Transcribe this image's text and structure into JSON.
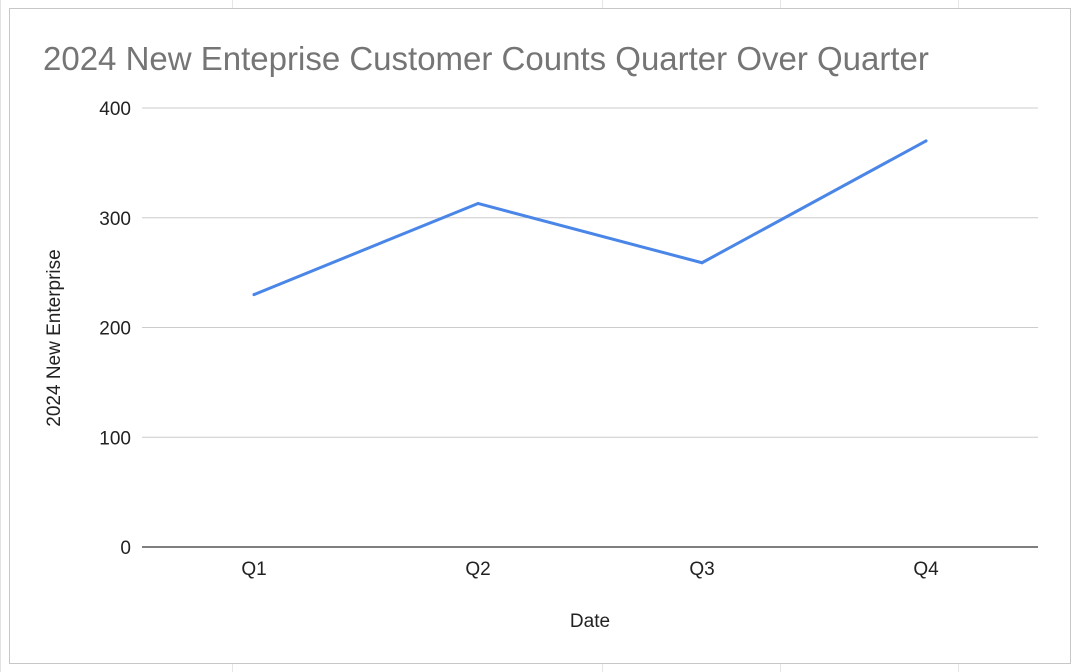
{
  "chart_data": {
    "type": "line",
    "title": "2024 New Enteprise Customer Counts Quarter Over Quarter",
    "xlabel": "Date",
    "ylabel": "2024 New Enterprise",
    "categories": [
      "Q1",
      "Q2",
      "Q3",
      "Q4"
    ],
    "series": [
      {
        "values": [
          230,
          313,
          259,
          370
        ],
        "color": "#4a86e8"
      }
    ],
    "ylim": [
      0,
      400
    ],
    "yticks": [
      0,
      100,
      200,
      300,
      400
    ],
    "grid": true,
    "legend": "none"
  }
}
